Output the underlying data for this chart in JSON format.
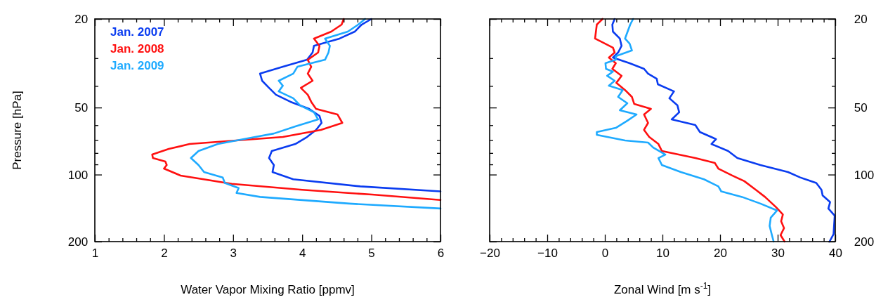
{
  "chart_data": [
    {
      "type": "line",
      "xlabel": "Water Vapor Mixing Ratio [ppmv]",
      "ylabel": "Pressure [hPa]",
      "log": true,
      "legend": "top left",
      "xlim": [
        1,
        6
      ],
      "xticks": [
        1,
        {
          "value": 1.2,
          "label": null
        },
        {
          "value": 1.4,
          "label": null
        },
        {
          "value": 1.6,
          "label": null
        },
        {
          "value": 1.8,
          "label": null
        },
        2,
        {
          "value": 2.2,
          "label": null
        },
        {
          "value": 2.4,
          "label": null
        },
        {
          "value": 2.6,
          "label": null
        },
        {
          "value": 2.8,
          "label": null
        },
        3,
        {
          "value": 3.2,
          "label": null
        },
        {
          "value": 3.4,
          "label": null
        },
        {
          "value": 3.6,
          "label": null
        },
        {
          "value": 3.8,
          "label": null
        },
        4,
        {
          "value": 4.2,
          "label": null
        },
        {
          "value": 4.4,
          "label": null
        },
        {
          "value": 4.6,
          "label": null
        },
        {
          "value": 4.8,
          "label": null
        },
        5,
        {
          "value": 5.2,
          "label": null
        },
        {
          "value": 5.4,
          "label": null
        },
        {
          "value": 5.6,
          "label": null
        },
        {
          "value": 5.8,
          "label": null
        },
        6
      ],
      "ylim": [
        200,
        20
      ],
      "yticks": [
        20,
        {
          "value": 30,
          "label": null
        },
        {
          "value": 40,
          "label": null
        },
        50,
        {
          "value": 60,
          "label": null
        },
        {
          "value": 70,
          "label": null
        },
        {
          "value": 80,
          "label": null
        },
        {
          "value": 90,
          "label": null
        },
        100,
        200
      ],
      "series": [
        {
          "name": "Jan. 2007",
          "color": "#0a3cf0",
          "x": [
            5.0,
            4.86,
            4.76,
            4.54,
            4.17,
            4.15,
            4.07,
            3.72,
            3.39,
            3.42,
            3.52,
            3.62,
            3.83,
            4.1,
            4.25,
            4.28,
            4.2,
            4.07,
            3.9,
            3.56,
            3.52,
            3.59,
            3.57,
            3.87,
            4.84,
            6.0
          ],
          "values": [
            20,
            21.2,
            22.8,
            24.5,
            26.4,
            28.3,
            30.5,
            32.8,
            35.2,
            37.9,
            40.8,
            43.8,
            47.1,
            50.7,
            54.5,
            58.6,
            63.0,
            67.8,
            72.9,
            78.4,
            84.3,
            90.6,
            97.4,
            105,
            113,
            119
          ]
        },
        {
          "name": "Jan. 2008",
          "color": "#ff1010",
          "x": [
            4.6,
            4.57,
            4.42,
            4.17,
            4.25,
            4.23,
            4.08,
            4.13,
            4.08,
            4.15,
            3.98,
            4.08,
            4.13,
            4.2,
            4.51,
            4.58,
            4.27,
            3.72,
            2.37,
            2.07,
            1.83,
            1.84,
            2.02,
            2.04,
            2.0,
            2.24,
            2.98,
            4.0,
            5.01,
            6.0
          ],
          "values": [
            20,
            21.2,
            22.8,
            24.5,
            26.4,
            28.3,
            30.5,
            32.8,
            35.2,
            37.9,
            40.8,
            43.8,
            47.1,
            50.7,
            53.7,
            58.6,
            63.0,
            67.8,
            72.9,
            76.7,
            81.3,
            84.3,
            87.4,
            90.6,
            94.0,
            101,
            110,
            117,
            123,
            130
          ]
        },
        {
          "name": "Jan. 2009",
          "color": "#1eaaff",
          "x": [
            4.91,
            4.81,
            4.66,
            4.33,
            4.4,
            4.38,
            4.33,
            3.93,
            3.87,
            3.66,
            3.72,
            3.66,
            3.87,
            3.97,
            4.17,
            4.23,
            3.9,
            3.59,
            3.32,
            2.78,
            2.5,
            2.39,
            2.5,
            2.58,
            2.85,
            2.88,
            3.08,
            3.05,
            3.39,
            4.68,
            6.0
          ],
          "values": [
            20,
            21.2,
            22.8,
            24.5,
            26.4,
            28.3,
            30.5,
            32.8,
            35.2,
            37.9,
            39.9,
            42.3,
            45.4,
            48.9,
            52.5,
            56.5,
            60.8,
            65.4,
            67.8,
            72.9,
            78.4,
            84.3,
            90.6,
            97.4,
            103,
            109,
            115,
            121,
            126,
            135,
            142
          ]
        }
      ]
    },
    {
      "type": "line",
      "xlabel": "Zonal Wind [m s$^{-1}$]",
      "log": "y2",
      "xlim": [
        -20,
        40
      ],
      "xticks": [
        {
          "value": -20,
          "label": "−20"
        },
        {
          "value": -18,
          "label": null
        },
        {
          "value": -16,
          "label": null
        },
        {
          "value": -14,
          "label": null
        },
        {
          "value": -12,
          "label": null
        },
        {
          "value": -10,
          "label": "−10"
        },
        {
          "value": -8,
          "label": null
        },
        {
          "value": -6,
          "label": null
        },
        {
          "value": -4,
          "label": null
        },
        {
          "value": -2,
          "label": null
        },
        0,
        {
          "value": 2,
          "label": null
        },
        {
          "value": 4,
          "label": null
        },
        {
          "value": 6,
          "label": null
        },
        {
          "value": 8,
          "label": null
        },
        10,
        {
          "value": 12,
          "label": null
        },
        {
          "value": 14,
          "label": null
        },
        {
          "value": 16,
          "label": null
        },
        {
          "value": 18,
          "label": null
        },
        20,
        {
          "value": 22,
          "label": null
        },
        {
          "value": 24,
          "label": null
        },
        {
          "value": 26,
          "label": null
        },
        {
          "value": 28,
          "label": null
        },
        30,
        {
          "value": 32,
          "label": null
        },
        {
          "value": 34,
          "label": null
        },
        {
          "value": 36,
          "label": null
        },
        {
          "value": 38,
          "label": null
        },
        40
      ],
      "y2lim": [
        200,
        20
      ],
      "y2ticks": [
        20,
        {
          "value": 30,
          "label": null
        },
        {
          "value": 40,
          "label": null
        },
        50,
        {
          "value": 60,
          "label": null
        },
        {
          "value": 70,
          "label": null
        },
        {
          "value": 80,
          "label": null
        },
        {
          "value": 90,
          "label": null
        },
        100,
        200
      ],
      "series": [
        {
          "color": "#0a3cf0",
          "axis": "y2",
          "x": [
            1.7,
            1.3,
            1.4,
            2.6,
            2.9,
            2.3,
            1.4,
            4.3,
            6.8,
            7.5,
            9.0,
            9.2,
            12.0,
            11.2,
            12.6,
            12.9,
            11.6,
            15.7,
            16.5,
            19.3,
            18.5,
            21.4,
            23.0,
            27.0,
            31.8,
            33.9,
            36.7,
            37.6,
            37.8,
            39.1,
            38.8,
            39.9,
            39.8,
            39.7,
            39.0
          ],
          "values": [
            20,
            21.2,
            22.8,
            24.5,
            26.4,
            28.3,
            29.8,
            31.6,
            33.5,
            35.2,
            37.1,
            39.3,
            42.3,
            45.4,
            48.9,
            52.5,
            56.5,
            59.9,
            64.4,
            69.3,
            72.9,
            78.4,
            84.3,
            90.6,
            97.4,
            103,
            109,
            117,
            124,
            133,
            142,
            153,
            168,
            185,
            200
          ]
        },
        {
          "color": "#ff1010",
          "axis": "y2",
          "x": [
            -0.4,
            -1.4,
            -1.7,
            -0.5,
            1.4,
            1.7,
            0.7,
            1.9,
            1.3,
            2.9,
            2.0,
            3.5,
            4.7,
            5.1,
            8.0,
            6.8,
            7.5,
            6.8,
            7.7,
            9.3,
            9.9,
            15.7,
            19.1,
            19.7,
            22.1,
            24.2,
            26.2,
            27.8,
            29.7,
            30.9,
            30.6,
            31.1,
            30.5,
            31.2
          ],
          "values": [
            20,
            21.2,
            24.5,
            25.4,
            26.9,
            28.3,
            29.8,
            31.6,
            33.5,
            36.0,
            38.7,
            41.7,
            44.8,
            48.2,
            50.7,
            53.7,
            58.6,
            63.0,
            67.8,
            72.9,
            78.4,
            84.3,
            88.7,
            94.0,
            101,
            107,
            117,
            126,
            140,
            151,
            162,
            174,
            187,
            200
          ]
        },
        {
          "color": "#1eaaff",
          "axis": "y2",
          "x": [
            4.9,
            4.4,
            3.5,
            4.3,
            4.7,
            1.9,
            1.9,
            0.1,
            0.2,
            1.4,
            0.4,
            1.7,
            0.7,
            3.1,
            2.3,
            3.9,
            2.6,
            5.5,
            3.9,
            1.9,
            -1.4,
            -1.4,
            3.5,
            7.5,
            8.4,
            10.5,
            9.3,
            9.9,
            13.2,
            17.2,
            19.7,
            20.2,
            23.8,
            27.0,
            29.9,
            28.8,
            28.6,
            29.0,
            29.3
          ],
          "values": [
            20,
            21.2,
            24.5,
            25.8,
            27.7,
            29.4,
            30.5,
            31.6,
            33.5,
            34.5,
            36.0,
            37.9,
            39.9,
            41.7,
            44.8,
            47.8,
            51.4,
            53.7,
            57.3,
            61.7,
            64.4,
            66.3,
            70.3,
            71.8,
            75.6,
            81.3,
            84.3,
            90.6,
            97.4,
            105,
            113,
            119,
            126,
            135,
            145,
            156,
            170,
            187,
            200
          ]
        }
      ]
    }
  ]
}
